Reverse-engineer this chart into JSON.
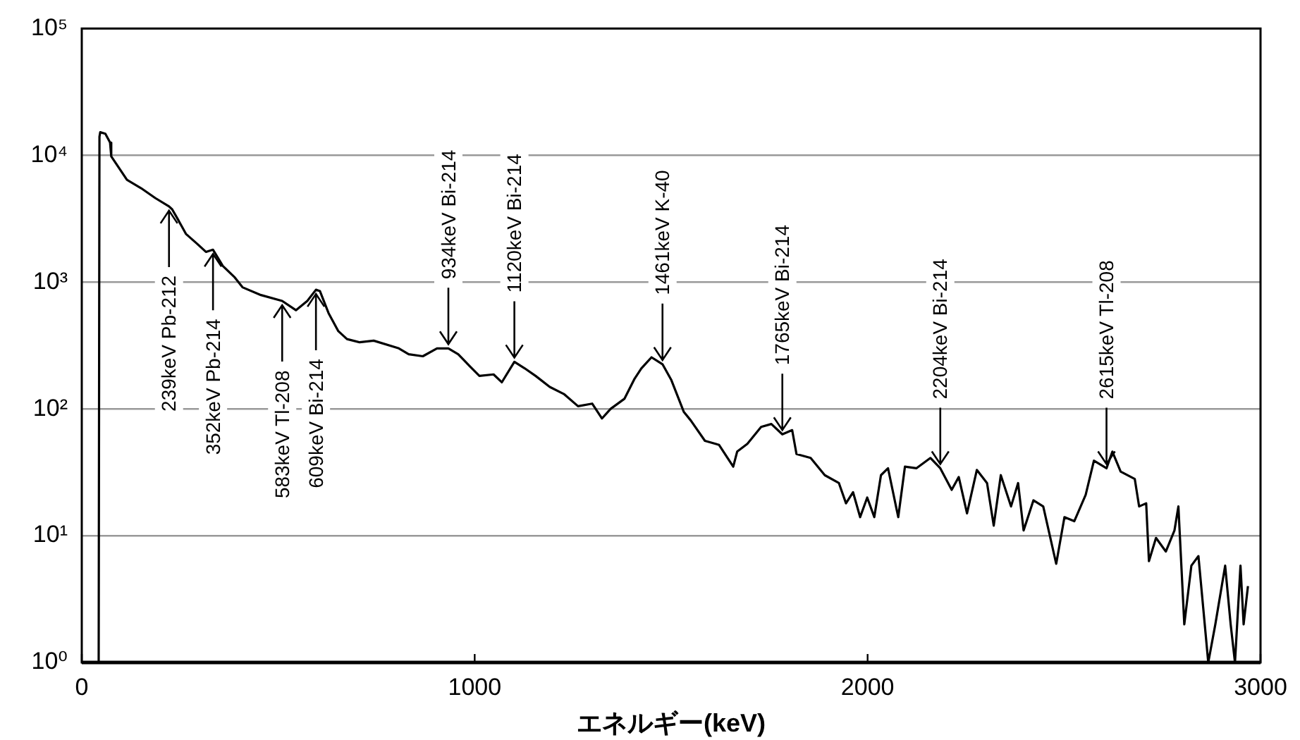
{
  "chart_data": {
    "type": "line",
    "xlabel": "エネルギー(keV)",
    "x": [
      43,
      45,
      47,
      60,
      72,
      75,
      115,
      151,
      187,
      222,
      230,
      244,
      265,
      294,
      316,
      334,
      359,
      388,
      409,
      456,
      510,
      545,
      574,
      596,
      606,
      628,
      653,
      675,
      707,
      743,
      807,
      832,
      868,
      904,
      933,
      958,
      987,
      1012,
      1048,
      1069,
      1101,
      1127,
      1155,
      1191,
      1227,
      1263,
      1299,
      1324,
      1346,
      1381,
      1407,
      1424,
      1450,
      1478,
      1500,
      1532,
      1550,
      1586,
      1622,
      1658,
      1668,
      1694,
      1729,
      1755,
      1783,
      1808,
      1819,
      1855,
      1891,
      1927,
      1945,
      1963,
      1981,
      1999,
      2017,
      2034,
      2052,
      2078,
      2095,
      2124,
      2160,
      2185,
      2214,
      2232,
      2253,
      2278,
      2304,
      2321,
      2339,
      2365,
      2383,
      2397,
      2422,
      2447,
      2480,
      2501,
      2526,
      2555,
      2576,
      2608,
      2623,
      2644,
      2680,
      2691,
      2709,
      2716,
      2734,
      2759,
      2781,
      2791,
      2806,
      2824,
      2842,
      2867,
      2885,
      2910,
      2924,
      2935,
      2949,
      2957,
      2968
    ],
    "series": [
      {
        "color": "#000000",
        "values": [
          1,
          14000,
          15200,
          14800,
          12600,
          9800,
          6400,
          5500,
          4600,
          3950,
          3750,
          3150,
          2400,
          2000,
          1730,
          1800,
          1340,
          1100,
          910,
          790,
          710,
          600,
          710,
          870,
          850,
          570,
          410,
          355,
          335,
          345,
          300,
          270,
          260,
          300,
          300,
          270,
          218,
          182,
          187,
          162,
          235,
          209,
          182,
          149,
          131,
          105,
          110,
          84,
          100,
          120,
          173,
          208,
          255,
          225,
          170,
          95,
          81,
          56,
          52,
          35,
          46,
          53,
          72,
          76,
          63,
          68,
          44,
          41,
          30,
          26,
          18,
          22,
          14,
          20,
          14,
          30,
          34,
          14,
          35,
          34,
          41,
          34,
          23,
          29,
          15,
          33,
          26,
          12,
          30,
          17,
          26,
          11,
          19,
          17,
          6,
          14,
          13,
          21,
          39,
          34,
          46,
          32,
          28,
          17,
          18,
          6.3,
          9.6,
          7.5,
          11,
          17,
          2,
          5.8,
          6.9,
          1,
          2,
          5.8,
          2,
          1,
          5.8,
          2,
          4
        ]
      }
    ],
    "xlim": [
      0,
      3000
    ],
    "xticks": [
      0,
      1000,
      2000,
      3000
    ],
    "ylim": [
      1,
      100000
    ],
    "log": true,
    "yticks": [
      {
        "value": 1,
        "label": "10⁰"
      },
      {
        "value": 10,
        "label": "10¹"
      },
      {
        "value": 100,
        "label": "10²"
      },
      {
        "value": 1000,
        "label": "10³"
      },
      {
        "value": 10000,
        "label": "10⁴"
      },
      {
        "value": 100000,
        "label": "10⁵"
      }
    ],
    "grid": "y",
    "legend": false,
    "annotations": [
      {
        "text": "239keV Pb-212",
        "x": 222,
        "y": 3950
      },
      {
        "text": "352keV Pb-214",
        "x": 334,
        "y": 1800
      },
      {
        "text": "583keV Tl-208",
        "x": 510,
        "y": 710
      },
      {
        "text": "609keV Bi-214",
        "x": 596,
        "y": 870
      },
      {
        "text": "934keV Bi-214",
        "x": 933,
        "y": 300
      },
      {
        "text": "1120keV Bi-214",
        "x": 1101,
        "y": 235
      },
      {
        "text": "1461keV K-40",
        "x": 1478,
        "y": 225
      },
      {
        "text": "1765keV Bi-214",
        "x": 1783,
        "y": 63
      },
      {
        "text": "2204keV Bi-214",
        "x": 2185,
        "y": 34
      },
      {
        "text": "2615keV Tl-208",
        "x": 2608,
        "y": 34
      }
    ]
  }
}
